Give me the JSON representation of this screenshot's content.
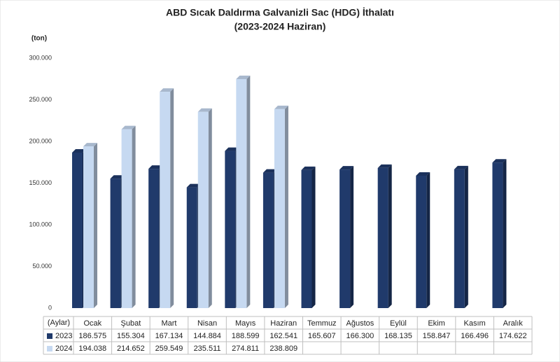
{
  "chart_data": {
    "type": "bar",
    "title": "ABD Sıcak Daldırma Galvanizli Sac (HDG) İthalatı",
    "subtitle": "(2023-2024 Haziran)",
    "y_label": "(ton)",
    "x_label": "(Aylar)",
    "categories": [
      "Ocak",
      "Şubat",
      "Mart",
      "Nisan",
      "Mayıs",
      "Haziran",
      "Temmuz",
      "Ağustos",
      "Eylül",
      "Ekim",
      "Kasım",
      "Aralık"
    ],
    "series": [
      {
        "name": "2023",
        "color": "#203a6b",
        "values": [
          186575,
          155304,
          167134,
          144884,
          188599,
          162541,
          165607,
          166300,
          168135,
          158847,
          166496,
          174622
        ],
        "value_labels": [
          "186.575",
          "155.304",
          "167.134",
          "144.884",
          "188.599",
          "162.541",
          "165.607",
          "166.300",
          "168.135",
          "158.847",
          "166.496",
          "174.622"
        ]
      },
      {
        "name": "2024",
        "color": "#c6d9f1",
        "values": [
          194038,
          214652,
          259549,
          235511,
          274811,
          238809,
          null,
          null,
          null,
          null,
          null,
          null
        ],
        "value_labels": [
          "194.038",
          "214.652",
          "259.549",
          "235.511",
          "274.811",
          "238.809",
          null,
          null,
          null,
          null,
          null,
          null
        ]
      }
    ],
    "ylim": [
      0,
      300000
    ],
    "yticks": [
      0,
      {
        "value": 50000,
        "label": "50.000"
      },
      {
        "value": 100000,
        "label": "100.000"
      },
      {
        "value": 150000,
        "label": "150.000"
      },
      {
        "value": 200000,
        "label": "200.000"
      },
      {
        "value": 250000,
        "label": "250.000"
      },
      {
        "value": 300000,
        "label": "300.000"
      }
    ],
    "grid": false
  }
}
